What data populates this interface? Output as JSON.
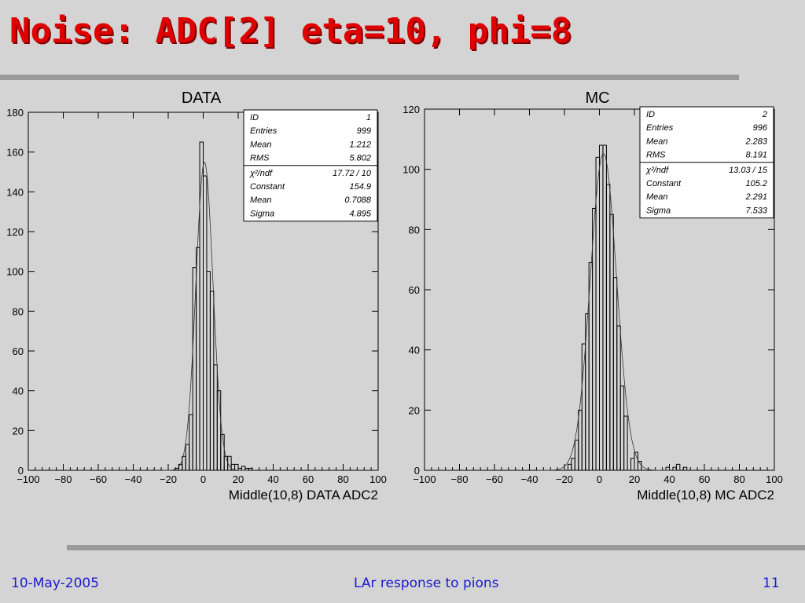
{
  "slide": {
    "title": "Noise: ADC[2] eta=10, phi=8",
    "footer_date": "10-May-2005",
    "footer_center": "LAr response to pions",
    "footer_page": "11"
  },
  "colors": {
    "title": "#e00000",
    "footer": "#1a1ad0",
    "background": "#d4d4d4",
    "rule": "#9a9a9a"
  },
  "chart_data": [
    {
      "type": "bar",
      "title": "DATA",
      "xlabel": "Middle(10,8) DATA ADC2",
      "ylabel": "",
      "xlim": [
        -100,
        100
      ],
      "ylim": [
        0,
        180
      ],
      "xticks": [
        -100,
        -80,
        -60,
        -40,
        -20,
        0,
        20,
        40,
        60,
        80,
        100
      ],
      "yticks": [
        0,
        20,
        40,
        60,
        80,
        100,
        120,
        140,
        160,
        180
      ],
      "bin_width": 2,
      "bin_starts": [
        -16,
        -14,
        -12,
        -10,
        -8,
        -6,
        -4,
        -2,
        0,
        2,
        4,
        6,
        8,
        10,
        12,
        14,
        16,
        18,
        20,
        22,
        24,
        26,
        28
      ],
      "values": [
        1,
        3,
        7,
        13,
        28,
        102,
        112,
        165,
        148,
        100,
        90,
        53,
        40,
        18,
        7,
        7,
        3,
        3,
        1,
        2,
        1,
        1,
        0
      ],
      "fit": {
        "type": "gaussian",
        "constant": 154.9,
        "mean": 0.7088,
        "sigma": 4.895
      },
      "stats": [
        {
          "label": "ID",
          "value": "1"
        },
        {
          "label": "Entries",
          "value": "999"
        },
        {
          "label": "Mean",
          "value": "1.212"
        },
        {
          "label": "RMS",
          "value": "5.802"
        }
      ],
      "fit_stats": [
        {
          "label": "χ²/ndf",
          "value": "17.72   /   10"
        },
        {
          "label": "Constant",
          "value": "154.9"
        },
        {
          "label": "Mean",
          "value": "0.7088"
        },
        {
          "label": "Sigma",
          "value": "4.895"
        }
      ]
    },
    {
      "type": "bar",
      "title": "MC",
      "xlabel": "Middle(10,8) MC ADC2",
      "ylabel": "",
      "xlim": [
        -100,
        100
      ],
      "ylim": [
        0,
        120
      ],
      "xticks": [
        -100,
        -80,
        -60,
        -40,
        -20,
        0,
        20,
        40,
        60,
        80,
        100
      ],
      "yticks": [
        0,
        20,
        40,
        60,
        80,
        100,
        120
      ],
      "bin_width": 2,
      "bin_starts": [
        -18,
        -16,
        -14,
        -12,
        -10,
        -8,
        -6,
        -4,
        -2,
        0,
        2,
        4,
        6,
        8,
        10,
        12,
        14,
        16,
        18,
        20,
        22,
        24,
        26,
        28,
        30,
        32,
        34,
        36,
        38,
        40,
        42,
        44,
        46,
        48,
        50
      ],
      "values": [
        2,
        4,
        10,
        20,
        42,
        52,
        69,
        87,
        104,
        108,
        108,
        95,
        85,
        64,
        48,
        28,
        18,
        0,
        4,
        6,
        3,
        0,
        0,
        0,
        0,
        0,
        0,
        0,
        1,
        0,
        1,
        2,
        0,
        1,
        0
      ],
      "fit": {
        "type": "gaussian",
        "constant": 105.2,
        "mean": 2.291,
        "sigma": 7.533
      },
      "stats": [
        {
          "label": "ID",
          "value": "2"
        },
        {
          "label": "Entries",
          "value": "996"
        },
        {
          "label": "Mean",
          "value": "2.283"
        },
        {
          "label": "RMS",
          "value": "8.191"
        }
      ],
      "fit_stats": [
        {
          "label": "χ²/ndf",
          "value": "13.03   /   15"
        },
        {
          "label": "Constant",
          "value": "105.2"
        },
        {
          "label": "Mean",
          "value": "2.291"
        },
        {
          "label": "Sigma",
          "value": "7.533"
        }
      ]
    }
  ]
}
